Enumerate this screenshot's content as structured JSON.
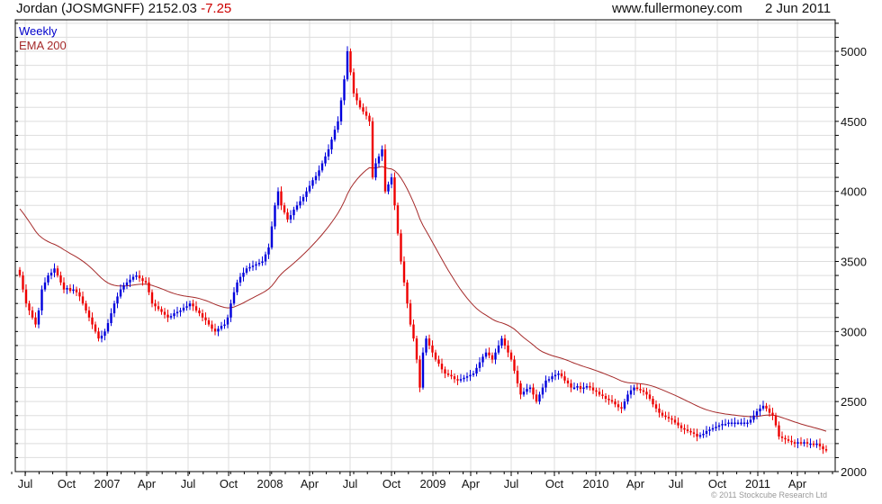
{
  "header": {
    "title": "Jordan (JOSMGNFF) 2152.03",
    "change": "-7.25",
    "site": "www.fullermoney.com",
    "date": "2 Jun 2011"
  },
  "copyright": "© 2011 Stockcube Research Ltd",
  "colors": {
    "up": "#0000dd",
    "down": "#ee0000",
    "ema": "#a52a2a",
    "grid": "#dddddd"
  },
  "chart_data": {
    "type": "candlestick",
    "title": "Jordan (JOSMGNFF) 2152.03 -7.25",
    "legend": [
      "Weekly",
      "EMA 200"
    ],
    "legend_placement": "top-left",
    "ylim": [
      2000,
      5200
    ],
    "y_ticks": [
      2000,
      2500,
      3000,
      3500,
      4000,
      4500,
      5000
    ],
    "x_tick_labels": [
      "Jul",
      "Oct",
      "2007",
      "Apr",
      "Jul",
      "Oct",
      "2008",
      "Apr",
      "Jul",
      "Oct",
      "2009",
      "Apr",
      "Jul",
      "Oct",
      "2010",
      "Apr",
      "Jul",
      "Oct",
      "2011",
      "Apr"
    ],
    "start_week": "Jun 2006",
    "ema_start": 3900,
    "weekly_close": [
      3400,
      3300,
      3200,
      3150,
      3100,
      3050,
      3150,
      3300,
      3350,
      3400,
      3420,
      3450,
      3400,
      3350,
      3300,
      3310,
      3290,
      3300,
      3280,
      3250,
      3200,
      3150,
      3100,
      3050,
      3000,
      2950,
      2970,
      3000,
      3060,
      3130,
      3200,
      3250,
      3300,
      3330,
      3350,
      3370,
      3390,
      3400,
      3380,
      3360,
      3350,
      3280,
      3200,
      3180,
      3160,
      3140,
      3120,
      3100,
      3110,
      3130,
      3140,
      3150,
      3170,
      3180,
      3200,
      3180,
      3150,
      3130,
      3100,
      3080,
      3050,
      3020,
      3000,
      3020,
      3040,
      3050,
      3100,
      3200,
      3280,
      3350,
      3390,
      3420,
      3450,
      3460,
      3470,
      3480,
      3490,
      3500,
      3550,
      3600,
      3750,
      3900,
      4000,
      3900,
      3850,
      3800,
      3830,
      3870,
      3900,
      3930,
      3960,
      4000,
      4040,
      4080,
      4110,
      4150,
      4200,
      4250,
      4300,
      4370,
      4440,
      4500,
      4650,
      4800,
      5000,
      4850,
      4700,
      4650,
      4600,
      4570,
      4540,
      4500,
      4100,
      4200,
      4250,
      4300,
      4000,
      4050,
      4100,
      3900,
      3700,
      3500,
      3350,
      3200,
      3050,
      2950,
      2800,
      2600,
      2850,
      2950,
      2900,
      2850,
      2800,
      2770,
      2730,
      2700,
      2690,
      2680,
      2660,
      2650,
      2660,
      2670,
      2680,
      2690,
      2700,
      2740,
      2780,
      2820,
      2850,
      2830,
      2800,
      2850,
      2900,
      2950,
      2900,
      2850,
      2800,
      2720,
      2630,
      2550,
      2570,
      2590,
      2600,
      2550,
      2500,
      2550,
      2600,
      2650,
      2660,
      2680,
      2690,
      2700,
      2680,
      2650,
      2630,
      2600,
      2600,
      2610,
      2590,
      2600,
      2610,
      2600,
      2580,
      2570,
      2550,
      2540,
      2520,
      2510,
      2500,
      2480,
      2460,
      2450,
      2500,
      2550,
      2580,
      2600,
      2590,
      2580,
      2570,
      2550,
      2520,
      2480,
      2450,
      2420,
      2400,
      2390,
      2380,
      2370,
      2350,
      2330,
      2310,
      2300,
      2290,
      2280,
      2270,
      2250,
      2260,
      2270,
      2290,
      2300,
      2310,
      2320,
      2330,
      2340,
      2340,
      2350,
      2350,
      2350,
      2350,
      2350,
      2350,
      2350,
      2370,
      2400,
      2430,
      2450,
      2470,
      2450,
      2420,
      2400,
      2330,
      2250,
      2240,
      2230,
      2220,
      2210,
      2200,
      2210,
      2200,
      2210,
      2200,
      2200,
      2190,
      2200,
      2180,
      2160,
      2152.03
    ]
  }
}
